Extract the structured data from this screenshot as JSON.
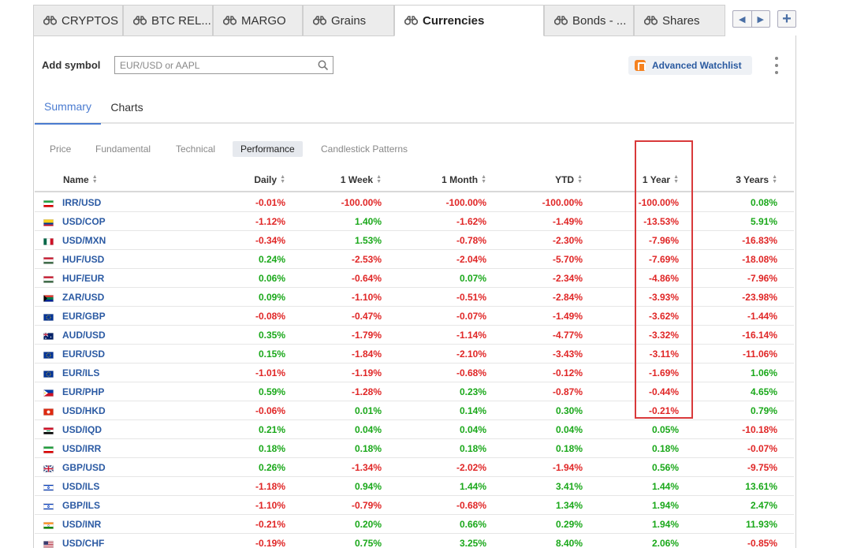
{
  "tabs": [
    {
      "label": "CRYPTOS"
    },
    {
      "label": "BTC REL..."
    },
    {
      "label": "MARGO"
    },
    {
      "label": "Grains"
    },
    {
      "label": "Currencies"
    },
    {
      "label": "Bonds - ..."
    },
    {
      "label": "Shares"
    }
  ],
  "active_tab": "Currencies",
  "add_symbol": {
    "label": "Add symbol",
    "placeholder": "EUR/USD or AAPL"
  },
  "watchlist_button": "Advanced Watchlist",
  "subtabs": [
    {
      "label": "Summary"
    },
    {
      "label": "Charts"
    }
  ],
  "views": [
    {
      "label": "Price"
    },
    {
      "label": "Fundamental"
    },
    {
      "label": "Technical"
    },
    {
      "label": "Performance"
    },
    {
      "label": "Candlestick Patterns"
    }
  ],
  "active_view": "Performance",
  "columns": {
    "name": "Name",
    "daily": "Daily",
    "week": "1 Week",
    "month": "1 Month",
    "ytd": "YTD",
    "year": "1 Year",
    "years3": "3 Years"
  },
  "rows": [
    {
      "symbol": "IRR/USD",
      "flag": "iran",
      "daily": "-0.01%",
      "week": "-100.00%",
      "month": "-100.00%",
      "ytd": "-100.00%",
      "year": "-100.00%",
      "years3": "0.08%"
    },
    {
      "symbol": "USD/COP",
      "flag": "colombia",
      "daily": "-1.12%",
      "week": "1.40%",
      "month": "-1.62%",
      "ytd": "-1.49%",
      "year": "-13.53%",
      "years3": "5.91%"
    },
    {
      "symbol": "USD/MXN",
      "flag": "mexico",
      "daily": "-0.34%",
      "week": "1.53%",
      "month": "-0.78%",
      "ytd": "-2.30%",
      "year": "-7.96%",
      "years3": "-16.83%"
    },
    {
      "symbol": "HUF/USD",
      "flag": "hungary",
      "daily": "0.24%",
      "week": "-2.53%",
      "month": "-2.04%",
      "ytd": "-5.70%",
      "year": "-7.69%",
      "years3": "-18.08%"
    },
    {
      "symbol": "HUF/EUR",
      "flag": "hungary",
      "daily": "0.06%",
      "week": "-0.64%",
      "month": "0.07%",
      "ytd": "-2.34%",
      "year": "-4.86%",
      "years3": "-7.96%"
    },
    {
      "symbol": "ZAR/USD",
      "flag": "south-africa",
      "daily": "0.09%",
      "week": "-1.10%",
      "month": "-0.51%",
      "ytd": "-2.84%",
      "year": "-3.93%",
      "years3": "-23.98%"
    },
    {
      "symbol": "EUR/GBP",
      "flag": "eu",
      "daily": "-0.08%",
      "week": "-0.47%",
      "month": "-0.07%",
      "ytd": "-1.49%",
      "year": "-3.62%",
      "years3": "-1.44%"
    },
    {
      "symbol": "AUD/USD",
      "flag": "australia",
      "daily": "0.35%",
      "week": "-1.79%",
      "month": "-1.14%",
      "ytd": "-4.77%",
      "year": "-3.32%",
      "years3": "-16.14%"
    },
    {
      "symbol": "EUR/USD",
      "flag": "eu",
      "daily": "0.15%",
      "week": "-1.84%",
      "month": "-2.10%",
      "ytd": "-3.43%",
      "year": "-3.11%",
      "years3": "-11.06%"
    },
    {
      "symbol": "EUR/ILS",
      "flag": "eu",
      "daily": "-1.01%",
      "week": "-1.19%",
      "month": "-0.68%",
      "ytd": "-0.12%",
      "year": "-1.69%",
      "years3": "1.06%"
    },
    {
      "symbol": "EUR/PHP",
      "flag": "philippines",
      "daily": "0.59%",
      "week": "-1.28%",
      "month": "0.23%",
      "ytd": "-0.87%",
      "year": "-0.44%",
      "years3": "4.65%"
    },
    {
      "symbol": "USD/HKD",
      "flag": "hong-kong",
      "daily": "-0.06%",
      "week": "0.01%",
      "month": "0.14%",
      "ytd": "0.30%",
      "year": "-0.21%",
      "years3": "0.79%"
    },
    {
      "symbol": "USD/IQD",
      "flag": "iraq",
      "daily": "0.21%",
      "week": "0.04%",
      "month": "0.04%",
      "ytd": "0.04%",
      "year": "0.05%",
      "years3": "-10.18%"
    },
    {
      "symbol": "USD/IRR",
      "flag": "iran",
      "daily": "0.18%",
      "week": "0.18%",
      "month": "0.18%",
      "ytd": "0.18%",
      "year": "0.18%",
      "years3": "-0.07%"
    },
    {
      "symbol": "GBP/USD",
      "flag": "uk",
      "daily": "0.26%",
      "week": "-1.34%",
      "month": "-2.02%",
      "ytd": "-1.94%",
      "year": "0.56%",
      "years3": "-9.75%"
    },
    {
      "symbol": "USD/ILS",
      "flag": "israel",
      "daily": "-1.18%",
      "week": "0.94%",
      "month": "1.44%",
      "ytd": "3.41%",
      "year": "1.44%",
      "years3": "13.61%"
    },
    {
      "symbol": "GBP/ILS",
      "flag": "israel",
      "daily": "-1.10%",
      "week": "-0.79%",
      "month": "-0.68%",
      "ytd": "1.34%",
      "year": "1.94%",
      "years3": "2.47%"
    },
    {
      "symbol": "USD/INR",
      "flag": "india",
      "daily": "-0.21%",
      "week": "0.20%",
      "month": "0.66%",
      "ytd": "0.29%",
      "year": "1.94%",
      "years3": "11.93%"
    },
    {
      "symbol": "USD/CHF",
      "flag": "usa",
      "daily": "-0.19%",
      "week": "0.75%",
      "month": "3.25%",
      "ytd": "8.40%",
      "year": "2.06%",
      "years3": "-0.85%"
    }
  ],
  "colors": {
    "positive": "#1aa81a",
    "negative": "#e02626",
    "link": "#2b5aa3",
    "accent": "#4a7bd0",
    "highlight_border": "#d9393a"
  },
  "icons": [
    "binoculars-icon",
    "search-icon",
    "watchlist-logo-icon",
    "more-vertical-icon",
    "arrow-left-icon",
    "arrow-right-icon",
    "plus-icon",
    "sort-icon"
  ]
}
